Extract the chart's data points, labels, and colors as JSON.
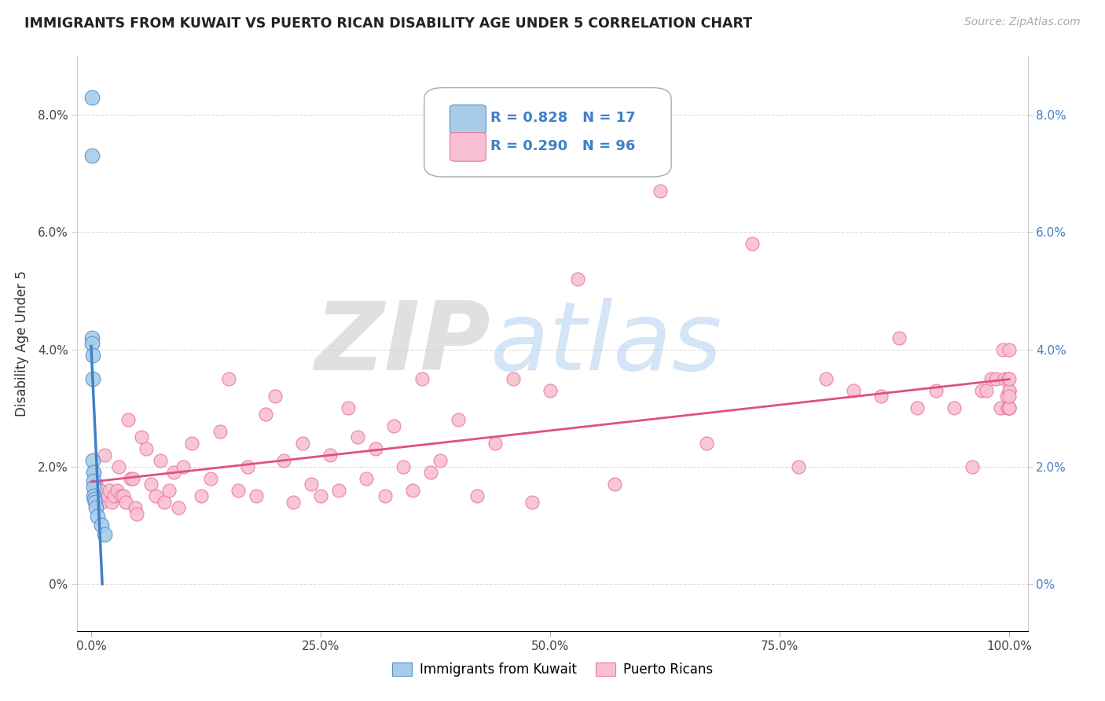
{
  "title": "IMMIGRANTS FROM KUWAIT VS PUERTO RICAN DISABILITY AGE UNDER 5 CORRELATION CHART",
  "source": "Source: ZipAtlas.com",
  "ylabel": "Disability Age Under 5",
  "blue_color": "#a8cce8",
  "blue_edge_color": "#5090d0",
  "pink_color": "#f8c0d0",
  "pink_edge_color": "#e878a0",
  "blue_line_color": "#4080c8",
  "pink_line_color": "#e05080",
  "legend_R1": "R = 0.828",
  "legend_N1": "N = 17",
  "legend_R2": "R = 0.290",
  "legend_N2": "N = 96",
  "watermark_zip": "ZIP",
  "watermark_atlas": "atlas",
  "kuwait_x": [
    0.05,
    0.08,
    0.1,
    0.12,
    0.15,
    0.18,
    0.2,
    0.22,
    0.25,
    0.28,
    0.3,
    0.35,
    0.4,
    0.5,
    0.7,
    1.1,
    1.45
  ],
  "kuwait_y": [
    8.3,
    7.3,
    4.2,
    4.1,
    3.9,
    3.5,
    2.1,
    1.9,
    1.75,
    1.65,
    1.5,
    1.45,
    1.4,
    1.3,
    1.15,
    1.0,
    0.85
  ],
  "pr_x": [
    0.3,
    0.5,
    0.8,
    1.0,
    1.2,
    1.5,
    1.8,
    2.0,
    2.2,
    2.5,
    2.8,
    3.0,
    3.3,
    3.5,
    3.8,
    4.0,
    4.3,
    4.5,
    4.8,
    5.0,
    5.5,
    6.0,
    6.5,
    7.0,
    7.5,
    8.0,
    8.5,
    9.0,
    9.5,
    10.0,
    11.0,
    12.0,
    13.0,
    14.0,
    15.0,
    16.0,
    17.0,
    18.0,
    19.0,
    20.0,
    21.0,
    22.0,
    23.0,
    24.0,
    25.0,
    26.0,
    27.0,
    28.0,
    29.0,
    30.0,
    31.0,
    32.0,
    33.0,
    34.0,
    35.0,
    36.0,
    37.0,
    38.0,
    40.0,
    42.0,
    44.0,
    46.0,
    48.0,
    50.0,
    53.0,
    57.0,
    62.0,
    67.0,
    72.0,
    77.0,
    80.0,
    83.0,
    86.0,
    88.0,
    90.0,
    92.0,
    94.0,
    96.0,
    97.0,
    97.5,
    98.0,
    98.5,
    99.0,
    99.3,
    99.5,
    99.7,
    99.8,
    99.9,
    100.0,
    100.0,
    100.0,
    100.0,
    100.0,
    100.0,
    100.0,
    100.0
  ],
  "pr_y": [
    1.9,
    1.7,
    1.5,
    1.6,
    1.4,
    2.2,
    1.5,
    1.6,
    1.4,
    1.5,
    1.6,
    2.0,
    1.5,
    1.5,
    1.4,
    2.8,
    1.8,
    1.8,
    1.3,
    1.2,
    2.5,
    2.3,
    1.7,
    1.5,
    2.1,
    1.4,
    1.6,
    1.9,
    1.3,
    2.0,
    2.4,
    1.5,
    1.8,
    2.6,
    3.5,
    1.6,
    2.0,
    1.5,
    2.9,
    3.2,
    2.1,
    1.4,
    2.4,
    1.7,
    1.5,
    2.2,
    1.6,
    3.0,
    2.5,
    1.8,
    2.3,
    1.5,
    2.7,
    2.0,
    1.6,
    3.5,
    1.9,
    2.1,
    2.8,
    1.5,
    2.4,
    3.5,
    1.4,
    3.3,
    5.2,
    1.7,
    6.7,
    2.4,
    5.8,
    2.0,
    3.5,
    3.3,
    3.2,
    4.2,
    3.0,
    3.3,
    3.0,
    2.0,
    3.3,
    3.3,
    3.5,
    3.5,
    3.0,
    4.0,
    3.5,
    3.2,
    3.0,
    3.5,
    4.0,
    3.3,
    3.0,
    3.0,
    3.3,
    3.0,
    3.5,
    3.2
  ]
}
